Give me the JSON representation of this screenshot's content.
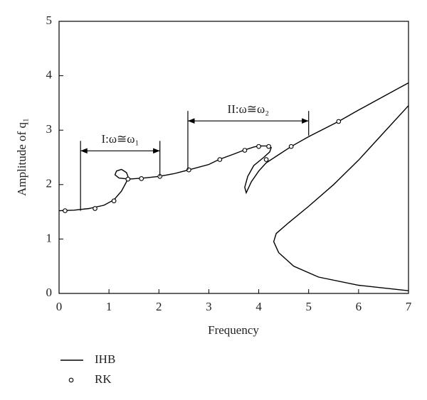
{
  "chart_data": {
    "type": "line",
    "xlabel": "Frequency",
    "ylabel": "Amplitude of q₁",
    "xlim": [
      0,
      7
    ],
    "ylim": [
      0,
      5
    ],
    "xticks": [
      0,
      1,
      2,
      3,
      4,
      5,
      6,
      7
    ],
    "yticks": [
      0,
      1,
      2,
      3,
      4,
      5
    ],
    "grid": false,
    "legend": "bottom-left",
    "series": [
      {
        "name": "IHB",
        "color": "#000000",
        "style": "line",
        "x": [
          0,
          0.3,
          0.6,
          0.9,
          1.1,
          1.25,
          1.35,
          1.38,
          1.35,
          1.25,
          1.15,
          1.12,
          1.2,
          1.4,
          1.7,
          2.0,
          2.3,
          2.6,
          3.0,
          3.2,
          3.5,
          3.7,
          3.9,
          4.0,
          4.2,
          4.25,
          4.22,
          4.1,
          3.9,
          3.78,
          3.72,
          3.75,
          3.85,
          4.0,
          4.15,
          4.35,
          4.65,
          5.0,
          5.6,
          6.0,
          6.5,
          7.0,
          null,
          7.0,
          6.5,
          6.0,
          5.5,
          5.0,
          4.6,
          4.35,
          4.3,
          4.4,
          4.7,
          5.2,
          6.0,
          7.0
        ],
        "values": [
          1.52,
          1.53,
          1.56,
          1.62,
          1.72,
          1.88,
          2.05,
          2.15,
          2.22,
          2.28,
          2.25,
          2.18,
          2.12,
          2.1,
          2.12,
          2.15,
          2.2,
          2.27,
          2.37,
          2.46,
          2.56,
          2.63,
          2.69,
          2.71,
          2.71,
          2.68,
          2.6,
          2.5,
          2.35,
          2.15,
          1.95,
          1.85,
          2.05,
          2.25,
          2.4,
          2.52,
          2.7,
          2.88,
          3.16,
          3.37,
          3.62,
          3.87,
          null,
          3.45,
          2.95,
          2.45,
          2.0,
          1.6,
          1.3,
          1.1,
          0.95,
          0.75,
          0.5,
          0.3,
          0.15,
          0.05
        ]
      },
      {
        "name": "RK",
        "color": "#000000",
        "style": "marker",
        "x": [
          0.12,
          0.72,
          1.1,
          1.38,
          1.65,
          2.02,
          2.6,
          3.22,
          3.72,
          4.0,
          4.2,
          4.15,
          4.65,
          5.6
        ],
        "values": [
          1.52,
          1.56,
          1.7,
          2.1,
          2.11,
          2.15,
          2.27,
          2.46,
          2.63,
          2.7,
          2.7,
          2.46,
          2.7,
          3.16
        ]
      }
    ],
    "annotations": [
      {
        "text": "I:ω≅ω₁",
        "x": [
          0.43,
          2.02
        ],
        "y": 2.62,
        "bracket_bottom": [
          1.52,
          2.15
        ]
      },
      {
        "text": "II:ω≅ω₂",
        "x": [
          2.58,
          5.0
        ],
        "y": 3.17,
        "bracket_bottom": [
          2.27,
          2.9
        ]
      }
    ]
  }
}
